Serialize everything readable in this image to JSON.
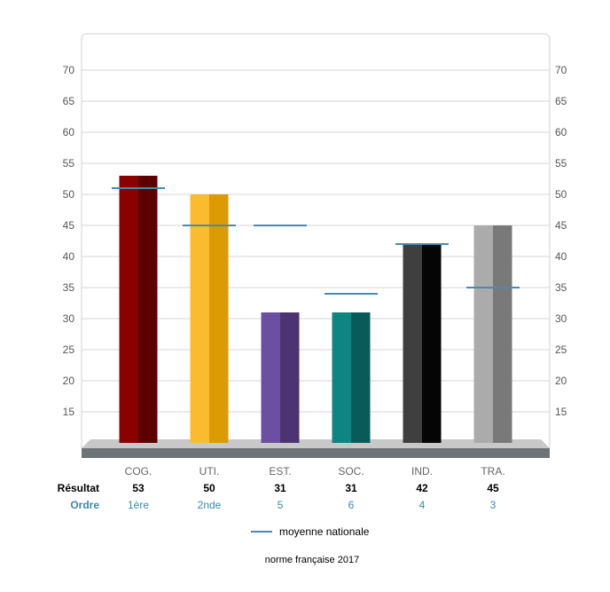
{
  "chart_data": {
    "type": "bar",
    "categories": [
      "COG.",
      "UTI.",
      "EST.",
      "SOC.",
      "IND.",
      "TRA."
    ],
    "series": [
      {
        "name": "Résultat",
        "values": [
          53,
          50,
          31,
          31,
          42,
          45
        ]
      },
      {
        "name": "moyenne nationale",
        "values": [
          51,
          45,
          45,
          34,
          42,
          35
        ]
      }
    ],
    "ordre": [
      "1ère",
      "2nde",
      "5",
      "6",
      "4",
      "3"
    ],
    "row_labels": {
      "result": "Résultat",
      "order": "Ordre"
    },
    "legend": {
      "label": "moyenne nationale",
      "position": "bottom"
    },
    "footnote": "norme française 2017",
    "yticks": [
      15,
      20,
      25,
      30,
      35,
      40,
      45,
      50,
      55,
      60,
      65,
      70
    ],
    "ylim": [
      10,
      75
    ],
    "grid": true,
    "colors": {
      "bars": [
        {
          "light": "#8b0000",
          "dark": "#5c0000"
        },
        {
          "light": "#fbbb2e",
          "dark": "#dc9a05"
        },
        {
          "light": "#6c4fa0",
          "dark": "#4b3470"
        },
        {
          "light": "#0e8582",
          "dark": "#085b58"
        },
        {
          "light": "#3f3f3f",
          "dark": "#050505"
        },
        {
          "light": "#ababab",
          "dark": "#797979"
        }
      ],
      "mean_line": "#4a8ab0",
      "order_text": "#3a8aa8",
      "floor_top": "#c8c8c8",
      "floor_front": "#6e7378"
    }
  }
}
